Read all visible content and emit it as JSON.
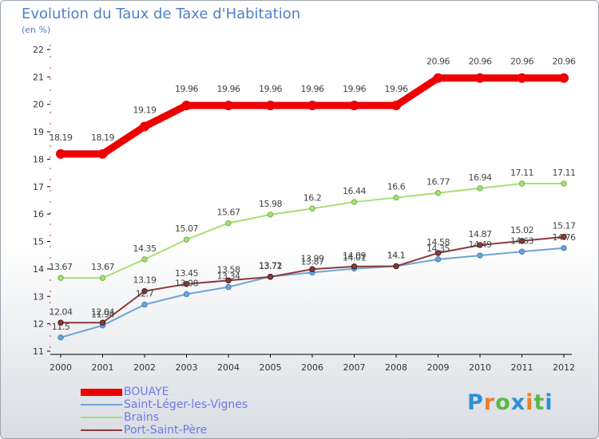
{
  "title": "Evolution du Taux de Taxe d'Habitation",
  "subtitle": "(en %)",
  "logo_text": "Proxiti",
  "chart_data": {
    "type": "line",
    "x": [
      "2000",
      "2001",
      "2002",
      "2003",
      "2004",
      "2005",
      "2006",
      "2007",
      "2008",
      "2009",
      "2010",
      "2011",
      "2012"
    ],
    "ylim": [
      11,
      22
    ],
    "yticks": [
      11,
      12,
      13,
      14,
      15,
      16,
      17,
      18,
      19,
      20,
      21,
      22
    ],
    "grid": false,
    "legend_position": "bottom-left",
    "series": [
      {
        "name": "BOUAYE",
        "color": "#ee0000",
        "values": [
          18.19,
          18.19,
          19.19,
          19.96,
          19.96,
          19.96,
          19.96,
          19.96,
          19.96,
          20.96,
          20.96,
          20.96,
          20.96
        ],
        "labels": [
          "18.19",
          "18.19",
          "19.19",
          "19.96",
          "19.96",
          "19.96",
          "19.96",
          "19.96",
          "19.96",
          "20.96",
          "20.96",
          "20.96",
          "20.96"
        ]
      },
      {
        "name": "Saint-Léger-les-Vignes",
        "color": "#6fa3d6",
        "values": [
          11.5,
          11.94,
          12.7,
          13.08,
          13.34,
          13.72,
          13.87,
          14.01,
          14.1,
          14.35,
          14.49,
          14.63,
          14.76
        ],
        "labels": [
          "11.5",
          "11.94",
          "12.7",
          "13.08",
          "13.34",
          "13.72",
          "13.87",
          "14.01",
          "14.1",
          "14.35",
          "14.49",
          "14.63",
          "14.76"
        ]
      },
      {
        "name": "Brains",
        "color": "#a8de75",
        "values": [
          13.67,
          13.67,
          14.35,
          15.07,
          15.67,
          15.98,
          16.2,
          16.44,
          16.6,
          16.77,
          16.94,
          17.11,
          17.11
        ],
        "labels": [
          "13.67",
          "13.67",
          "14.35",
          "15.07",
          "15.67",
          "15.98",
          "16.2",
          "16.44",
          "16.6",
          "16.77",
          "16.94",
          "17.11",
          "17.11"
        ]
      },
      {
        "name": "Port-Saint-Père",
        "color": "#8b3a3a",
        "values": [
          12.04,
          12.04,
          13.19,
          13.45,
          13.58,
          13.71,
          13.99,
          14.09,
          14.1,
          14.58,
          14.87,
          15.02,
          15.17
        ],
        "labels": [
          "12.04",
          "12.04",
          "13.19",
          "13.45",
          "13.58",
          "13.71",
          "13.99",
          "14.09",
          "14.1",
          "14.58",
          "14.87",
          "15.02",
          "15.17"
        ]
      }
    ]
  }
}
